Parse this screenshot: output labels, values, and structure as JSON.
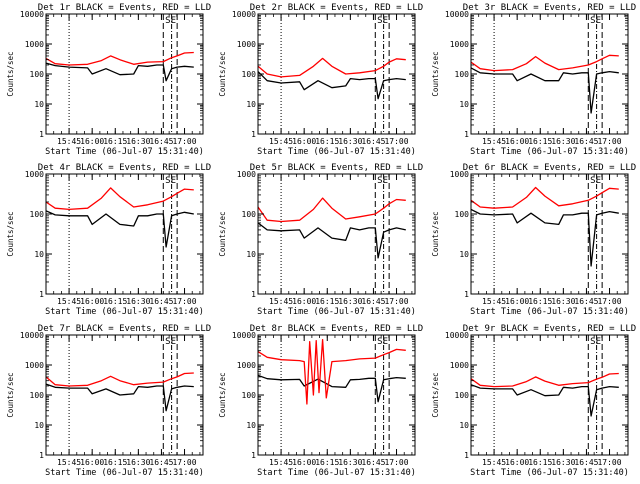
{
  "chart_data": [
    {
      "type": "line",
      "title": "Det 1r BLACK = Events, RED = LLD",
      "xlabel": "Start Time (06-Jul-07 15:31:40)",
      "ylabel": "Counts/sec",
      "y_scale": "log",
      "ylim": [
        1,
        10000
      ],
      "xlim": [
        15.5,
        17.2
      ],
      "x_ticks": [
        "15:45",
        "16:00",
        "16:15",
        "16:30",
        "16:45",
        "17:00"
      ],
      "y_ticks": [
        "1",
        "10",
        "100",
        "1000",
        "10000"
      ],
      "vlines": {
        "dotted": [
          15.75
        ],
        "dashed": [
          16.77,
          16.92
        ],
        "dashdot": [
          16.86
        ]
      },
      "annotations": [
        "SE"
      ],
      "series": [
        {
          "name": "Events",
          "color": "#000000",
          "x": [
            15.5,
            15.6,
            15.75,
            15.95,
            16.0,
            16.15,
            16.3,
            16.45,
            16.5,
            16.6,
            16.7,
            16.77,
            16.8,
            16.86,
            16.92,
            17.0,
            17.1
          ],
          "y": [
            230,
            190,
            170,
            160,
            100,
            150,
            95,
            100,
            190,
            180,
            200,
            200,
            60,
            150,
            170,
            180,
            170
          ]
        },
        {
          "name": "LLD",
          "color": "#ff0000",
          "x": [
            15.5,
            15.6,
            15.75,
            15.95,
            16.1,
            16.2,
            16.3,
            16.45,
            16.6,
            16.77,
            16.86,
            16.92,
            17.0,
            17.1
          ],
          "y": [
            330,
            220,
            200,
            210,
            280,
            400,
            300,
            210,
            250,
            260,
            350,
            400,
            500,
            520
          ]
        }
      ]
    },
    {
      "type": "line",
      "title": "Det 2r BLACK = Events, RED = LLD",
      "xlabel": "Start Time (06-Jul-07 15:31:40)",
      "ylabel": "Counts/sec",
      "y_scale": "log",
      "ylim": [
        1,
        10000
      ],
      "xlim": [
        15.5,
        17.2
      ],
      "x_ticks": [
        "15:45",
        "16:00",
        "16:15",
        "16:30",
        "16:45",
        "17:00"
      ],
      "y_ticks": [
        "1",
        "10",
        "100",
        "1000",
        "10000"
      ],
      "vlines": {
        "dotted": [
          15.75
        ],
        "dashed": [
          16.77,
          16.92
        ],
        "dashdot": [
          16.86
        ]
      },
      "annotations": [
        "SE"
      ],
      "series": [
        {
          "name": "Events",
          "color": "#000000",
          "x": [
            15.5,
            15.6,
            15.75,
            15.95,
            16.0,
            16.15,
            16.3,
            16.45,
            16.5,
            16.6,
            16.7,
            16.77,
            16.8,
            16.86,
            16.92,
            17.0,
            17.1
          ],
          "y": [
            120,
            60,
            50,
            55,
            30,
            60,
            35,
            40,
            70,
            65,
            70,
            70,
            15,
            60,
            65,
            70,
            65
          ]
        },
        {
          "name": "LLD",
          "color": "#ff0000",
          "x": [
            15.5,
            15.6,
            15.75,
            15.95,
            16.1,
            16.2,
            16.3,
            16.45,
            16.6,
            16.77,
            16.86,
            16.92,
            17.0,
            17.1
          ],
          "y": [
            180,
            100,
            80,
            90,
            180,
            330,
            180,
            100,
            110,
            130,
            180,
            250,
            320,
            300
          ]
        }
      ]
    },
    {
      "type": "line",
      "title": "Det 3r BLACK = Events, RED = LLD",
      "xlabel": "Start Time (06-Jul-07 15:31:40)",
      "ylabel": "Counts/sec",
      "y_scale": "log",
      "ylim": [
        1,
        10000
      ],
      "xlim": [
        15.5,
        17.2
      ],
      "x_ticks": [
        "15:45",
        "16:00",
        "16:15",
        "16:30",
        "16:45",
        "17:00"
      ],
      "y_ticks": [
        "1",
        "10",
        "100",
        "1000",
        "10000"
      ],
      "vlines": {
        "dotted": [
          15.75
        ],
        "dashed": [
          16.77,
          16.92
        ],
        "dashdot": [
          16.86
        ]
      },
      "annotations": [
        "SE"
      ],
      "series": [
        {
          "name": "Events",
          "color": "#000000",
          "x": [
            15.5,
            15.6,
            15.75,
            15.95,
            16.0,
            16.15,
            16.3,
            16.45,
            16.5,
            16.6,
            16.7,
            16.77,
            16.8,
            16.86,
            16.92,
            17.0,
            17.1
          ],
          "y": [
            160,
            110,
            100,
            100,
            60,
            100,
            60,
            60,
            110,
            100,
            110,
            110,
            5,
            100,
            110,
            120,
            110
          ]
        },
        {
          "name": "LLD",
          "color": "#ff0000",
          "x": [
            15.5,
            15.6,
            15.75,
            15.95,
            16.1,
            16.2,
            16.3,
            16.45,
            16.6,
            16.77,
            16.86,
            16.92,
            17.0,
            17.1
          ],
          "y": [
            250,
            150,
            130,
            140,
            220,
            380,
            230,
            140,
            160,
            200,
            260,
            320,
            420,
            400
          ]
        }
      ]
    },
    {
      "type": "line",
      "title": "Det 4r BLACK = Events, RED = LLD",
      "xlabel": "Start Time (06-Jul-07 15:31:40)",
      "ylabel": "Counts/sec",
      "y_scale": "log",
      "ylim": [
        1,
        1000
      ],
      "xlim": [
        15.5,
        17.2
      ],
      "x_ticks": [
        "15:45",
        "16:00",
        "16:15",
        "16:30",
        "16:45",
        "17:00"
      ],
      "y_ticks": [
        "1",
        "10",
        "100",
        "1000"
      ],
      "vlines": {
        "dotted": [
          15.75
        ],
        "dashed": [
          16.77,
          16.92
        ],
        "dashdot": [
          16.86
        ]
      },
      "annotations": [
        "SE"
      ],
      "series": [
        {
          "name": "Events",
          "color": "#000000",
          "x": [
            15.5,
            15.6,
            15.75,
            15.95,
            16.0,
            16.15,
            16.3,
            16.45,
            16.5,
            16.6,
            16.7,
            16.77,
            16.8,
            16.86,
            16.92,
            17.0,
            17.1
          ],
          "y": [
            120,
            95,
            90,
            90,
            55,
            100,
            55,
            50,
            90,
            90,
            100,
            100,
            15,
            90,
            100,
            110,
            100
          ]
        },
        {
          "name": "LLD",
          "color": "#ff0000",
          "x": [
            15.5,
            15.6,
            15.75,
            15.95,
            16.1,
            16.2,
            16.3,
            16.45,
            16.6,
            16.77,
            16.86,
            16.92,
            17.0,
            17.1
          ],
          "y": [
            200,
            140,
            130,
            140,
            250,
            450,
            270,
            150,
            170,
            210,
            270,
            330,
            420,
            400
          ]
        }
      ]
    },
    {
      "type": "line",
      "title": "Det 5r BLACK = Events, RED = LLD",
      "xlabel": "Start Time (06-Jul-07 15:31:40)",
      "ylabel": "Counts/sec",
      "y_scale": "log",
      "ylim": [
        1,
        1000
      ],
      "xlim": [
        15.5,
        17.2
      ],
      "x_ticks": [
        "15:45",
        "16:00",
        "16:15",
        "16:30",
        "16:45",
        "17:00"
      ],
      "y_ticks": [
        "1",
        "10",
        "100",
        "1000"
      ],
      "vlines": {
        "dotted": [
          15.75
        ],
        "dashed": [
          16.77,
          16.92
        ],
        "dashdot": [
          16.86
        ]
      },
      "annotations": [
        "SE"
      ],
      "series": [
        {
          "name": "Events",
          "color": "#000000",
          "x": [
            15.5,
            15.6,
            15.75,
            15.95,
            16.0,
            16.15,
            16.3,
            16.45,
            16.5,
            16.6,
            16.7,
            16.77,
            16.8,
            16.86,
            16.92,
            17.0,
            17.1
          ],
          "y": [
            60,
            40,
            38,
            40,
            25,
            45,
            25,
            22,
            45,
            40,
            45,
            45,
            8,
            35,
            40,
            45,
            40
          ]
        },
        {
          "name": "LLD",
          "color": "#ff0000",
          "x": [
            15.5,
            15.6,
            15.75,
            15.95,
            16.1,
            16.2,
            16.3,
            16.45,
            16.6,
            16.77,
            16.86,
            16.92,
            17.0,
            17.1
          ],
          "y": [
            150,
            70,
            65,
            70,
            130,
            250,
            140,
            75,
            85,
            100,
            140,
            180,
            230,
            220
          ]
        }
      ]
    },
    {
      "type": "line",
      "title": "Det 6r BLACK = Events, RED = LLD",
      "xlabel": "Start Time (06-Jul-07 15:31:40)",
      "ylabel": "Counts/sec",
      "y_scale": "log",
      "ylim": [
        1,
        1000
      ],
      "xlim": [
        15.5,
        17.2
      ],
      "x_ticks": [
        "15:45",
        "16:00",
        "16:15",
        "16:30",
        "16:45",
        "17:00"
      ],
      "y_ticks": [
        "1",
        "10",
        "100",
        "1000"
      ],
      "vlines": {
        "dotted": [
          15.75
        ],
        "dashed": [
          16.77,
          16.92
        ],
        "dashdot": [
          16.86
        ]
      },
      "annotations": [
        "SE"
      ],
      "series": [
        {
          "name": "Events",
          "color": "#000000",
          "x": [
            15.5,
            15.6,
            15.75,
            15.95,
            16.0,
            16.15,
            16.3,
            16.45,
            16.5,
            16.6,
            16.7,
            16.77,
            16.8,
            16.86,
            16.92,
            17.0,
            17.1
          ],
          "y": [
            130,
            100,
            95,
            100,
            60,
            105,
            60,
            55,
            95,
            95,
            105,
            105,
            5,
            95,
            105,
            115,
            105
          ]
        },
        {
          "name": "LLD",
          "color": "#ff0000",
          "x": [
            15.5,
            15.6,
            15.75,
            15.95,
            16.1,
            16.2,
            16.3,
            16.45,
            16.6,
            16.77,
            16.86,
            16.92,
            17.0,
            17.1
          ],
          "y": [
            220,
            150,
            140,
            150,
            260,
            460,
            280,
            160,
            180,
            220,
            280,
            340,
            440,
            420
          ]
        }
      ]
    },
    {
      "type": "line",
      "title": "Det 7r BLACK = Events, RED = LLD",
      "xlabel": "Start Time (06-Jul-07 15:31:40)",
      "ylabel": "Counts/sec",
      "y_scale": "log",
      "ylim": [
        1,
        10000
      ],
      "xlim": [
        15.5,
        17.2
      ],
      "x_ticks": [
        "15:45",
        "16:00",
        "16:15",
        "16:30",
        "16:45",
        "17:00"
      ],
      "y_ticks": [
        "1",
        "10",
        "100",
        "1000",
        "10000"
      ],
      "vlines": {
        "dotted": [
          15.75
        ],
        "dashed": [
          16.77,
          16.92
        ],
        "dashdot": [
          16.86
        ]
      },
      "annotations": [
        "SE"
      ],
      "series": [
        {
          "name": "Events",
          "color": "#000000",
          "x": [
            15.5,
            15.6,
            15.75,
            15.95,
            16.0,
            16.15,
            16.3,
            16.45,
            16.5,
            16.6,
            16.7,
            16.77,
            16.8,
            16.86,
            16.92,
            17.0,
            17.1
          ],
          "y": [
            230,
            180,
            170,
            170,
            110,
            160,
            100,
            110,
            190,
            180,
            200,
            200,
            30,
            160,
            180,
            200,
            190
          ]
        },
        {
          "name": "LLD",
          "color": "#ff0000",
          "x": [
            15.5,
            15.6,
            15.75,
            15.95,
            16.1,
            16.2,
            16.3,
            16.45,
            16.6,
            16.77,
            16.86,
            16.92,
            17.0,
            17.1
          ],
          "y": [
            400,
            220,
            200,
            210,
            300,
            420,
            300,
            220,
            250,
            270,
            350,
            400,
            520,
            540
          ]
        }
      ]
    },
    {
      "type": "line",
      "title": "Det 8r BLACK = Events, RED = LLD",
      "xlabel": "Start Time (06-Jul-07 15:31:40)",
      "ylabel": "Counts/sec",
      "y_scale": "log",
      "ylim": [
        1,
        10000
      ],
      "xlim": [
        15.5,
        17.2
      ],
      "x_ticks": [
        "15:45",
        "16:00",
        "16:15",
        "16:30",
        "16:45",
        "17:00"
      ],
      "y_ticks": [
        "1",
        "10",
        "100",
        "1000",
        "10000"
      ],
      "vlines": {
        "dotted": [
          15.75
        ],
        "dashed": [
          16.77,
          16.92
        ],
        "dashdot": [
          16.86
        ]
      },
      "annotations": [
        "SE"
      ],
      "series": [
        {
          "name": "Events",
          "color": "#000000",
          "x": [
            15.5,
            15.6,
            15.75,
            15.95,
            16.0,
            16.15,
            16.3,
            16.45,
            16.5,
            16.6,
            16.7,
            16.77,
            16.8,
            16.86,
            16.92,
            17.0,
            17.1
          ],
          "y": [
            450,
            350,
            320,
            330,
            200,
            340,
            190,
            180,
            320,
            330,
            360,
            360,
            60,
            320,
            350,
            380,
            360
          ]
        },
        {
          "name": "LLD",
          "color": "#ff0000",
          "x": [
            15.5,
            15.6,
            15.75,
            15.95,
            16.0,
            16.03,
            16.06,
            16.1,
            16.13,
            16.16,
            16.2,
            16.24,
            16.3,
            16.45,
            16.6,
            16.77,
            16.86,
            16.92,
            17.0,
            17.1
          ],
          "y": [
            2800,
            1800,
            1500,
            1400,
            1300,
            50,
            6000,
            100,
            6500,
            120,
            7000,
            80,
            1300,
            1400,
            1600,
            1700,
            2200,
            2600,
            3300,
            3100
          ]
        }
      ]
    },
    {
      "type": "line",
      "title": "Det 9r BLACK = Events, RED = LLD",
      "xlabel": "Start Time (06-Jul-07 15:31:40)",
      "ylabel": "Counts/sec",
      "y_scale": "log",
      "ylim": [
        1,
        10000
      ],
      "xlim": [
        15.5,
        17.2
      ],
      "x_ticks": [
        "15:45",
        "16:00",
        "16:15",
        "16:30",
        "16:45",
        "17:00"
      ],
      "y_ticks": [
        "1",
        "10",
        "100",
        "1000",
        "10000"
      ],
      "vlines": {
        "dotted": [
          15.75
        ],
        "dashed": [
          16.77,
          16.92
        ],
        "dashdot": [
          16.86
        ]
      },
      "annotations": [
        "SE"
      ],
      "series": [
        {
          "name": "Events",
          "color": "#000000",
          "x": [
            15.5,
            15.6,
            15.75,
            15.95,
            16.0,
            16.15,
            16.3,
            16.45,
            16.5,
            16.6,
            16.7,
            16.77,
            16.8,
            16.86,
            16.92,
            17.0,
            17.1
          ],
          "y": [
            220,
            170,
            160,
            160,
            100,
            150,
            95,
            100,
            180,
            170,
            190,
            190,
            20,
            150,
            170,
            190,
            180
          ]
        },
        {
          "name": "LLD",
          "color": "#ff0000",
          "x": [
            15.5,
            15.6,
            15.75,
            15.95,
            16.1,
            16.2,
            16.3,
            16.45,
            16.6,
            16.77,
            16.86,
            16.92,
            17.0,
            17.1
          ],
          "y": [
            350,
            210,
            190,
            200,
            280,
            400,
            290,
            210,
            240,
            260,
            340,
            390,
            500,
            520
          ]
        }
      ]
    }
  ]
}
